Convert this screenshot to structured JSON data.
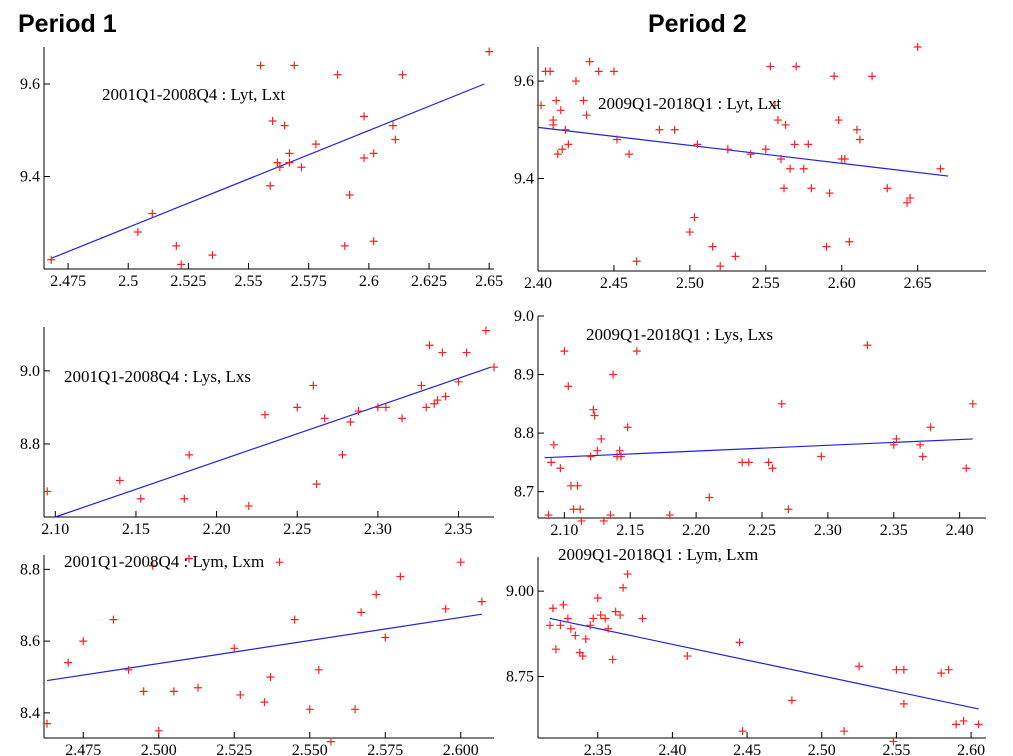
{
  "columns": [
    "Period 1",
    "Period 2"
  ],
  "colors": {
    "points": "#ff2020",
    "fit": "#2020e0",
    "axis": "#000000"
  },
  "chart_data": [
    {
      "type": "scatter",
      "column": "Period 1",
      "row": 1,
      "annotation": "2001Q1-2008Q4 : Lyt, Lxt",
      "xlim": [
        2.465,
        2.652
      ],
      "ylim": [
        9.2,
        9.68
      ],
      "xticks": [
        2.475,
        2.5,
        2.525,
        2.55,
        2.575,
        2.6,
        2.625,
        2.65
      ],
      "xtick_labels": [
        "2.475",
        "2.5",
        "2.525",
        "2.55",
        "2.575",
        "2.6",
        "2.625",
        "2.65"
      ],
      "yticks": [
        9.4,
        9.6
      ],
      "ytick_labels": [
        "9.4",
        "9.6"
      ],
      "fit": [
        [
          2.468,
          9.223
        ],
        [
          2.648,
          9.6
        ]
      ],
      "points": [
        [
          2.468,
          9.22
        ],
        [
          2.504,
          9.28
        ],
        [
          2.51,
          9.32
        ],
        [
          2.52,
          9.25
        ],
        [
          2.522,
          9.21
        ],
        [
          2.535,
          9.23
        ],
        [
          2.555,
          9.64
        ],
        [
          2.56,
          9.52
        ],
        [
          2.559,
          9.38
        ],
        [
          2.562,
          9.43
        ],
        [
          2.563,
          9.42
        ],
        [
          2.565,
          9.51
        ],
        [
          2.567,
          9.45
        ],
        [
          2.567,
          9.43
        ],
        [
          2.569,
          9.64
        ],
        [
          2.572,
          9.42
        ],
        [
          2.578,
          9.47
        ],
        [
          2.587,
          9.62
        ],
        [
          2.59,
          9.25
        ],
        [
          2.592,
          9.36
        ],
        [
          2.598,
          9.53
        ],
        [
          2.598,
          9.44
        ],
        [
          2.602,
          9.45
        ],
        [
          2.602,
          9.26
        ],
        [
          2.61,
          9.51
        ],
        [
          2.611,
          9.48
        ],
        [
          2.614,
          9.62
        ],
        [
          2.65,
          9.67
        ]
      ]
    },
    {
      "type": "scatter",
      "column": "Period 2",
      "row": 1,
      "annotation": "2009Q1-2018Q1 : Lyt, Lxt",
      "xlim": [
        2.4,
        2.695
      ],
      "ylim": [
        9.21,
        9.67
      ],
      "xticks": [
        2.4,
        2.45,
        2.5,
        2.55,
        2.6,
        2.65
      ],
      "xtick_labels": [
        "2.40",
        "2.45",
        "2.50",
        "2.55",
        "2.60",
        "2.65"
      ],
      "yticks": [
        9.4,
        9.6
      ],
      "ytick_labels": [
        "9.4",
        "9.6"
      ],
      "fit": [
        [
          2.4,
          9.505
        ],
        [
          2.67,
          9.405
        ]
      ],
      "points": [
        [
          2.402,
          9.55
        ],
        [
          2.405,
          9.62
        ],
        [
          2.408,
          9.62
        ],
        [
          2.41,
          9.52
        ],
        [
          2.412,
          9.56
        ],
        [
          2.413,
          9.45
        ],
        [
          2.415,
          9.54
        ],
        [
          2.416,
          9.46
        ],
        [
          2.418,
          9.5
        ],
        [
          2.42,
          9.47
        ],
        [
          2.41,
          9.51
        ],
        [
          2.425,
          9.6
        ],
        [
          2.43,
          9.56
        ],
        [
          2.432,
          9.53
        ],
        [
          2.434,
          9.64
        ],
        [
          2.44,
          9.62
        ],
        [
          2.45,
          9.62
        ],
        [
          2.452,
          9.48
        ],
        [
          2.46,
          9.45
        ],
        [
          2.465,
          9.23
        ],
        [
          2.48,
          9.5
        ],
        [
          2.49,
          9.5
        ],
        [
          2.5,
          9.29
        ],
        [
          2.503,
          9.32
        ],
        [
          2.505,
          9.47
        ],
        [
          2.515,
          9.26
        ],
        [
          2.52,
          9.22
        ],
        [
          2.525,
          9.46
        ],
        [
          2.53,
          9.24
        ],
        [
          2.54,
          9.45
        ],
        [
          2.55,
          9.46
        ],
        [
          2.553,
          9.63
        ],
        [
          2.556,
          9.55
        ],
        [
          2.558,
          9.52
        ],
        [
          2.56,
          9.44
        ],
        [
          2.562,
          9.38
        ],
        [
          2.563,
          9.51
        ],
        [
          2.566,
          9.42
        ],
        [
          2.569,
          9.47
        ],
        [
          2.57,
          9.63
        ],
        [
          2.575,
          9.42
        ],
        [
          2.578,
          9.47
        ],
        [
          2.58,
          9.38
        ],
        [
          2.59,
          9.26
        ],
        [
          2.592,
          9.37
        ],
        [
          2.595,
          9.61
        ],
        [
          2.598,
          9.52
        ],
        [
          2.6,
          9.44
        ],
        [
          2.602,
          9.44
        ],
        [
          2.605,
          9.27
        ],
        [
          2.61,
          9.5
        ],
        [
          2.612,
          9.48
        ],
        [
          2.62,
          9.61
        ],
        [
          2.63,
          9.38
        ],
        [
          2.643,
          9.35
        ],
        [
          2.645,
          9.36
        ],
        [
          2.65,
          9.67
        ],
        [
          2.665,
          9.42
        ]
      ]
    },
    {
      "type": "scatter",
      "column": "Period 1",
      "row": 2,
      "annotation": "2001Q1-2008Q4 : Lys, Lxs",
      "xlim": [
        2.093,
        2.372
      ],
      "ylim": [
        8.6,
        9.12
      ],
      "xticks": [
        2.1,
        2.15,
        2.2,
        2.25,
        2.3,
        2.35
      ],
      "xtick_labels": [
        "2.10",
        "2.15",
        "2.20",
        "2.25",
        "2.30",
        "2.35"
      ],
      "yticks": [
        8.8,
        9.0
      ],
      "ytick_labels": [
        "8.8",
        "9.0"
      ],
      "fit": [
        [
          2.1,
          8.6
        ],
        [
          2.37,
          9.01
        ]
      ],
      "points": [
        [
          2.095,
          8.67
        ],
        [
          2.14,
          8.7
        ],
        [
          2.153,
          8.65
        ],
        [
          2.18,
          8.65
        ],
        [
          2.183,
          8.77
        ],
        [
          2.22,
          8.63
        ],
        [
          2.23,
          8.88
        ],
        [
          2.25,
          8.9
        ],
        [
          2.26,
          8.96
        ],
        [
          2.262,
          8.69
        ],
        [
          2.267,
          8.87
        ],
        [
          2.278,
          8.77
        ],
        [
          2.283,
          8.86
        ],
        [
          2.288,
          8.89
        ],
        [
          2.3,
          8.9
        ],
        [
          2.305,
          8.9
        ],
        [
          2.315,
          8.87
        ],
        [
          2.327,
          8.96
        ],
        [
          2.33,
          8.9
        ],
        [
          2.332,
          9.07
        ],
        [
          2.335,
          8.91
        ],
        [
          2.337,
          8.92
        ],
        [
          2.34,
          9.05
        ],
        [
          2.342,
          8.93
        ],
        [
          2.35,
          8.97
        ],
        [
          2.355,
          9.05
        ],
        [
          2.367,
          9.11
        ],
        [
          2.372,
          9.01
        ]
      ]
    },
    {
      "type": "scatter",
      "column": "Period 2",
      "row": 2,
      "annotation": "2009Q1-2018Q1 : Lys, Lxs",
      "xlim": [
        2.08,
        2.42
      ],
      "ylim": [
        8.655,
        9.0
      ],
      "xticks": [
        2.1,
        2.15,
        2.2,
        2.25,
        2.3,
        2.35,
        2.4
      ],
      "xtick_labels": [
        "2.10",
        "2.15",
        "2.20",
        "2.25",
        "2.30",
        "2.35",
        "2.40"
      ],
      "yticks": [
        8.7,
        8.8,
        8.9,
        9.0
      ],
      "ytick_labels": [
        "8.7",
        "8.8",
        "8.9",
        "9.0"
      ],
      "fit": [
        [
          2.085,
          8.758
        ],
        [
          2.41,
          8.79
        ]
      ],
      "points": [
        [
          2.088,
          8.66
        ],
        [
          2.09,
          8.75
        ],
        [
          2.092,
          8.78
        ],
        [
          2.097,
          8.74
        ],
        [
          2.1,
          8.94
        ],
        [
          2.103,
          8.88
        ],
        [
          2.105,
          8.71
        ],
        [
          2.107,
          8.67
        ],
        [
          2.11,
          8.71
        ],
        [
          2.112,
          8.67
        ],
        [
          2.113,
          8.65
        ],
        [
          2.12,
          8.76
        ],
        [
          2.122,
          8.84
        ],
        [
          2.123,
          8.83
        ],
        [
          2.125,
          8.77
        ],
        [
          2.128,
          8.79
        ],
        [
          2.13,
          8.65
        ],
        [
          2.135,
          8.66
        ],
        [
          2.14,
          8.76
        ],
        [
          2.142,
          8.77
        ],
        [
          2.143,
          8.76
        ],
        [
          2.137,
          8.9
        ],
        [
          2.148,
          8.81
        ],
        [
          2.155,
          8.94
        ],
        [
          2.18,
          8.66
        ],
        [
          2.21,
          8.69
        ],
        [
          2.235,
          8.75
        ],
        [
          2.24,
          8.75
        ],
        [
          2.255,
          8.75
        ],
        [
          2.258,
          8.74
        ],
        [
          2.265,
          8.85
        ],
        [
          2.27,
          8.67
        ],
        [
          2.295,
          8.76
        ],
        [
          2.33,
          8.95
        ],
        [
          2.35,
          8.78
        ],
        [
          2.352,
          8.79
        ],
        [
          2.37,
          8.78
        ],
        [
          2.372,
          8.76
        ],
        [
          2.378,
          8.81
        ],
        [
          2.405,
          8.74
        ],
        [
          2.41,
          8.85
        ]
      ]
    },
    {
      "type": "scatter",
      "column": "Period 1",
      "row": 3,
      "annotation": "2001Q1-2008Q4 : Lym, Lxm",
      "xlim": [
        2.462,
        2.611
      ],
      "ylim": [
        8.33,
        8.84
      ],
      "xticks": [
        2.475,
        2.5,
        2.525,
        2.55,
        2.575,
        2.6
      ],
      "xtick_labels": [
        "2.475",
        "2.500",
        "2.525",
        "2.550",
        "2.575",
        "2.600"
      ],
      "yticks": [
        8.4,
        8.6,
        8.8
      ],
      "ytick_labels": [
        "8.4",
        "8.6",
        "8.8"
      ],
      "fit": [
        [
          2.463,
          8.49
        ],
        [
          2.607,
          8.675
        ]
      ],
      "points": [
        [
          2.463,
          8.37
        ],
        [
          2.47,
          8.54
        ],
        [
          2.475,
          8.6
        ],
        [
          2.485,
          8.66
        ],
        [
          2.49,
          8.52
        ],
        [
          2.495,
          8.46
        ],
        [
          2.498,
          8.81
        ],
        [
          2.5,
          8.35
        ],
        [
          2.505,
          8.46
        ],
        [
          2.51,
          8.83
        ],
        [
          2.513,
          8.47
        ],
        [
          2.525,
          8.58
        ],
        [
          2.527,
          8.45
        ],
        [
          2.535,
          8.43
        ],
        [
          2.537,
          8.5
        ],
        [
          2.54,
          8.82
        ],
        [
          2.545,
          8.66
        ],
        [
          2.55,
          8.41
        ],
        [
          2.553,
          8.52
        ],
        [
          2.557,
          8.32
        ],
        [
          2.565,
          8.41
        ],
        [
          2.567,
          8.68
        ],
        [
          2.572,
          8.73
        ],
        [
          2.575,
          8.61
        ],
        [
          2.58,
          8.78
        ],
        [
          2.595,
          8.69
        ],
        [
          2.6,
          8.82
        ],
        [
          2.607,
          8.71
        ]
      ]
    },
    {
      "type": "scatter",
      "column": "Period 2",
      "row": 3,
      "annotation": "2009Q1-2018Q1 : Lym, Lxm",
      "xlim": [
        2.31,
        2.61
      ],
      "ylim": [
        8.57,
        9.1
      ],
      "xticks": [
        2.35,
        2.4,
        2.45,
        2.5,
        2.55,
        2.6
      ],
      "xtick_labels": [
        "2.35",
        "2.40",
        "2.45",
        "2.50",
        "2.55",
        "2.60"
      ],
      "yticks": [
        8.75,
        9.0
      ],
      "ytick_labels": [
        "8.75",
        "9.00"
      ],
      "fit": [
        [
          2.318,
          8.92
        ],
        [
          2.605,
          8.655
        ]
      ],
      "points": [
        [
          2.318,
          8.9
        ],
        [
          2.32,
          8.95
        ],
        [
          2.322,
          8.83
        ],
        [
          2.325,
          8.9
        ],
        [
          2.327,
          8.96
        ],
        [
          2.33,
          8.92
        ],
        [
          2.332,
          8.89
        ],
        [
          2.335,
          8.87
        ],
        [
          2.338,
          8.82
        ],
        [
          2.34,
          8.81
        ],
        [
          2.342,
          8.86
        ],
        [
          2.345,
          8.9
        ],
        [
          2.347,
          8.92
        ],
        [
          2.35,
          8.98
        ],
        [
          2.352,
          8.93
        ],
        [
          2.355,
          8.92
        ],
        [
          2.357,
          8.89
        ],
        [
          2.36,
          8.8
        ],
        [
          2.362,
          8.94
        ],
        [
          2.365,
          8.93
        ],
        [
          2.367,
          9.01
        ],
        [
          2.37,
          9.05
        ],
        [
          2.38,
          8.92
        ],
        [
          2.41,
          8.81
        ],
        [
          2.445,
          8.85
        ],
        [
          2.447,
          8.59
        ],
        [
          2.48,
          8.68
        ],
        [
          2.515,
          8.59
        ],
        [
          2.525,
          8.78
        ],
        [
          2.548,
          8.56
        ],
        [
          2.55,
          8.77
        ],
        [
          2.555,
          8.67
        ],
        [
          2.555,
          8.77
        ],
        [
          2.58,
          8.76
        ],
        [
          2.585,
          8.77
        ],
        [
          2.59,
          8.61
        ],
        [
          2.595,
          8.62
        ],
        [
          2.605,
          8.61
        ]
      ]
    }
  ]
}
